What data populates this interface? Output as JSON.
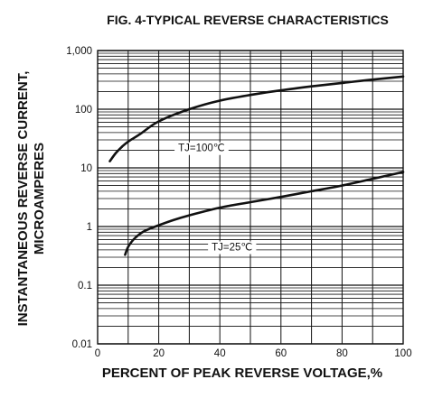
{
  "chart_data": {
    "type": "line",
    "title": "FIG. 4-TYPICAL REVERSE CHARACTERISTICS",
    "xlabel": "PERCENT OF PEAK REVERSE VOLTAGE,%",
    "ylabel_line1": "INSTANTANEOUS REVERSE CURRENT,",
    "ylabel_line2": "MICROAMPERES",
    "xlim": [
      0,
      100
    ],
    "ylim": [
      0.01,
      1000
    ],
    "y_scale": "log",
    "grid": true,
    "x_ticks": [
      "0",
      "20",
      "40",
      "60",
      "80",
      "100"
    ],
    "y_ticks": [
      "0.01",
      "0.1",
      "1",
      "10",
      "100",
      "1,000"
    ],
    "series": [
      {
        "name": "TJ=100℃",
        "x": [
          4,
          6,
          8,
          10,
          14,
          20,
          30,
          40,
          50,
          60,
          70,
          80,
          90,
          100
        ],
        "y": [
          13,
          18,
          23,
          28,
          38,
          62,
          100,
          140,
          175,
          210,
          245,
          280,
          320,
          360
        ]
      },
      {
        "name": "TJ=25℃",
        "x": [
          9,
          10,
          12,
          15,
          20,
          25,
          30,
          40,
          50,
          60,
          70,
          80,
          90,
          100
        ],
        "y": [
          0.33,
          0.45,
          0.62,
          0.82,
          1.05,
          1.3,
          1.55,
          2.1,
          2.6,
          3.2,
          4.0,
          5.0,
          6.5,
          8.5
        ]
      }
    ]
  }
}
